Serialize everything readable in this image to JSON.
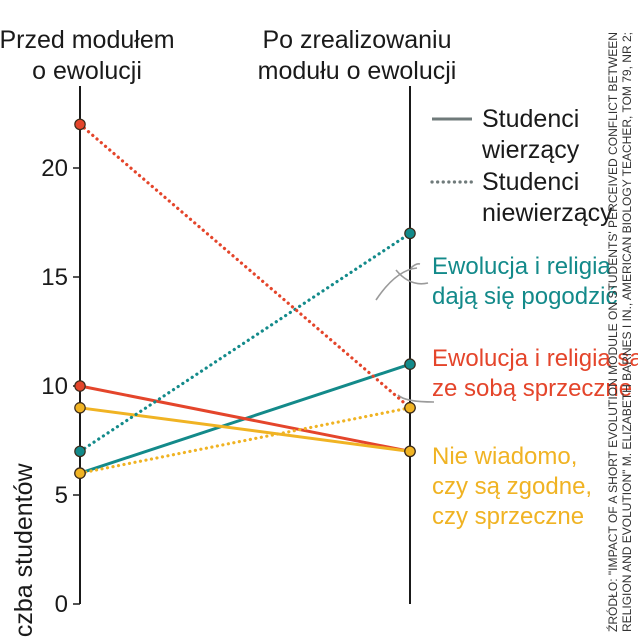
{
  "chart_data": {
    "type": "line",
    "x": [
      "Przed modułem o ewolucji",
      "Po zrealizowaniu modułu o ewolucji"
    ],
    "column_headers": [
      [
        "Przed modułem",
        "o ewolucji"
      ],
      [
        "Po zrealizowaniu",
        "modułu o ewolucji"
      ]
    ],
    "ylabel": "Liczba studentów",
    "ylim": [
      0,
      22
    ],
    "yticks": [
      0,
      5,
      10,
      15,
      20
    ],
    "series": [
      {
        "group": "Studenci wierzący",
        "category": "Ewolucja i religia dają się pogodzić",
        "style": "solid",
        "color": "#138a8a",
        "values": [
          6,
          11
        ]
      },
      {
        "group": "Studenci wierzący",
        "category": "Ewolucja i religia są ze sobą sprzeczne",
        "style": "solid",
        "color": "#e4452b",
        "values": [
          10,
          7
        ]
      },
      {
        "group": "Studenci wierzący",
        "category": "Nie wiadomo, czy są zgodne, czy sprzeczne",
        "style": "solid",
        "color": "#f0b323",
        "values": [
          9,
          7
        ]
      },
      {
        "group": "Studenci niewierzący",
        "category": "Ewolucja i religia dają się pogodzić",
        "style": "dotted",
        "color": "#138a8a",
        "values": [
          7,
          17
        ]
      },
      {
        "group": "Studenci niewierzący",
        "category": "Ewolucja i religia są ze sobą sprzeczne",
        "style": "dotted",
        "color": "#e4452b",
        "values": [
          22,
          9
        ]
      },
      {
        "group": "Studenci niewierzący",
        "category": "Nie wiadomo, czy są zgodne, czy sprzeczne",
        "style": "dotted",
        "color": "#f0b323",
        "values": [
          6,
          9
        ]
      }
    ],
    "legend": [
      {
        "style": "solid",
        "lines": [
          "Studenci",
          "wierzący"
        ]
      },
      {
        "style": "dotted",
        "lines": [
          "Studenci",
          "niewierzący"
        ]
      }
    ],
    "annotations": [
      {
        "color": "#138a8a",
        "lines": [
          "Ewolucja i religia",
          "dają się pogodzić"
        ]
      },
      {
        "color": "#e4452b",
        "lines": [
          "Ewolucja i religia są",
          "ze sobą sprzeczne"
        ]
      },
      {
        "color": "#f0b323",
        "lines": [
          "Nie wiadomo,",
          "czy są zgodne,",
          "czy sprzeczne"
        ]
      }
    ],
    "source": [
      "ŹRÓDŁO: \"IMPACT OF A SHORT EVOLUTION MODULE ON STUDENTS' PERCEIVED CONFLICT BETWEEN",
      "RELIGION AND EVOLUTION\" M. ELIZABETH BARNES I IN., AMERICAN BIOLOGY TEACHER, TOM 79, NR 2;"
    ],
    "grid": false
  }
}
